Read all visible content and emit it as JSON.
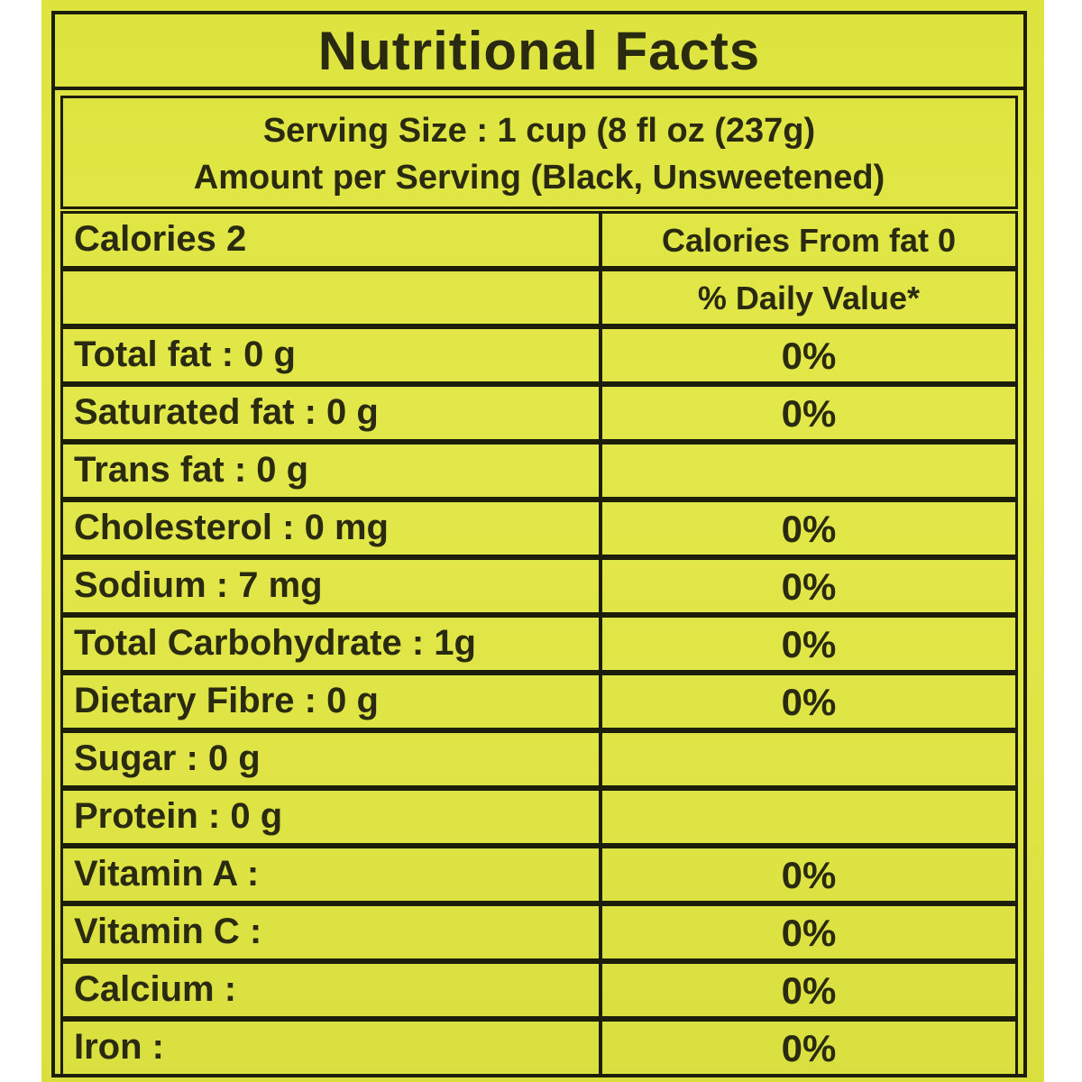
{
  "title": "Nutritional Facts",
  "serving_size": "Serving Size : 1 cup (8 fl oz (237g)",
  "amount_per_serving": "Amount per Serving (Black, Unsweetened)",
  "rows": [
    {
      "left": "Calories 2",
      "right": "Calories From fat 0"
    },
    {
      "left": "",
      "right": "% Daily Value*"
    },
    {
      "left": "Total fat : 0 g",
      "right": "0%"
    },
    {
      "left": "Saturated fat : 0 g",
      "right": "0%"
    },
    {
      "left": "Trans fat : 0 g",
      "right": ""
    },
    {
      "left": "Cholesterol : 0 mg",
      "right": "0%"
    },
    {
      "left": "Sodium : 7 mg",
      "right": "0%"
    },
    {
      "left": "Total Carbohydrate : 1g",
      "right": "0%"
    },
    {
      "left": "Dietary Fibre : 0 g",
      "right": "0%"
    },
    {
      "left": "Sugar : 0 g",
      "right": ""
    },
    {
      "left": "Protein : 0 g",
      "right": ""
    },
    {
      "left": "Vitamin A :",
      "right": "0%"
    },
    {
      "left": "Vitamin C :",
      "right": "0%"
    },
    {
      "left": "Calcium :",
      "right": "0%"
    },
    {
      "left": "Iron :",
      "right": "0%"
    }
  ]
}
